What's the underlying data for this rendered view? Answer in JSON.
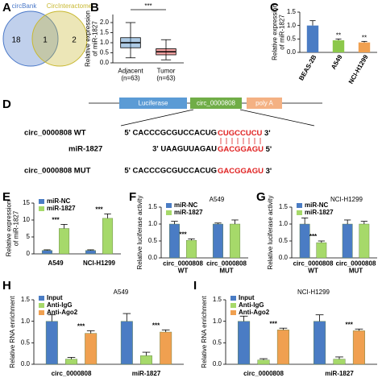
{
  "chart_data": [
    {
      "type": "venn",
      "panel": "A",
      "sets": [
        {
          "name": "circBank",
          "color": "#4a78c8"
        },
        {
          "name": "CircInteractome",
          "color": "#c8b830"
        }
      ],
      "counts": [
        18,
        1,
        2
      ]
    },
    {
      "type": "box",
      "panel": "B",
      "ylabel": "Relative expression\nof miR-1827",
      "categories": [
        "Adjacent\n(n=63)",
        "Tumor\n(n=63)"
      ],
      "colors": [
        "#4a8ac4",
        "#e03030"
      ],
      "boxes": [
        {
          "min": 0.25,
          "q1": 0.75,
          "median": 1.0,
          "q3": 1.25,
          "max": 2.0
        },
        {
          "min": 0.15,
          "q1": 0.4,
          "median": 0.55,
          "q3": 0.7,
          "max": 1.15
        }
      ],
      "ylim": [
        0,
        2.4
      ],
      "yticks": [
        {
          "value": 0,
          "label": "0.0"
        },
        {
          "value": 0.5,
          "label": "0.5"
        },
        {
          "value": 1,
          "label": "1.0"
        },
        {
          "value": 1.5,
          "label": "1.5"
        },
        {
          "value": 2,
          "label": "2.0"
        }
      ],
      "significance": "***"
    },
    {
      "type": "bar",
      "panel": "C",
      "ylabel": "Relative expression\nof miR-1827",
      "categories": [
        "BEAS-2B",
        "A549",
        "NCI-H1299"
      ],
      "values": [
        1.0,
        0.45,
        0.37
      ],
      "errors": [
        0.18,
        0.05,
        0.04
      ],
      "colors": [
        "#4a7cc4",
        "#8cc84b",
        "#f0a050"
      ],
      "significance": [
        null,
        "**",
        "**"
      ],
      "ylim": [
        0,
        1.5
      ],
      "yticks": [
        {
          "value": 0,
          "label": "0.0"
        },
        {
          "value": 0.5,
          "label": "0.5"
        },
        {
          "value": 1,
          "label": "1.0"
        },
        {
          "value": 1.5,
          "label": "1.5"
        }
      ]
    },
    {
      "type": "grouped-bar",
      "panel": "E",
      "ylabel": "Relative expression\nof miR-1827",
      "categories": [
        "A549",
        "NCI-H1299"
      ],
      "series": [
        {
          "name": "miR-NC",
          "color": "#4a7cc4",
          "values": [
            1.0,
            1.0
          ],
          "errors": [
            0.2,
            0.2
          ]
        },
        {
          "name": "miR-1827",
          "color": "#a6d96a",
          "values": [
            7.5,
            10.5
          ],
          "errors": [
            1.2,
            1.3
          ],
          "significance": [
            "***",
            "***"
          ]
        }
      ],
      "ylim": [
        0,
        15
      ],
      "yticks": [
        0,
        5,
        10,
        15
      ]
    },
    {
      "type": "grouped-bar",
      "panel": "F",
      "title": "A549",
      "ylabel": "Relative luciferase activity",
      "categories": [
        "circ_0000808\nWT",
        "circ_0000808\nMUT"
      ],
      "series": [
        {
          "name": "miR-NC",
          "color": "#4a7cc4",
          "values": [
            1.0,
            1.0
          ],
          "errors": [
            0.08,
            0.03
          ]
        },
        {
          "name": "miR-1827",
          "color": "#a6d96a",
          "values": [
            0.52,
            1.0
          ],
          "errors": [
            0.04,
            0.12
          ],
          "significance": [
            "***",
            null
          ]
        }
      ],
      "ylim": [
        0,
        1.5
      ],
      "yticks": [
        {
          "value": 0,
          "label": "0.0"
        },
        {
          "value": 0.5,
          "label": "0.5"
        },
        {
          "value": 1,
          "label": "1.0"
        },
        {
          "value": 1.5,
          "label": "1.5"
        }
      ]
    },
    {
      "type": "grouped-bar",
      "panel": "G",
      "title": "NCI-H1299",
      "ylabel": "Relative luciferase activity",
      "categories": [
        "circ_0000808\nWT",
        "circ_0000808\nMUT"
      ],
      "series": [
        {
          "name": "miR-NC",
          "color": "#4a7cc4",
          "values": [
            1.0,
            1.0
          ],
          "errors": [
            0.18,
            0.12
          ]
        },
        {
          "name": "miR-1827",
          "color": "#a6d96a",
          "values": [
            0.45,
            1.0
          ],
          "errors": [
            0.05,
            0.08
          ],
          "significance": [
            "***",
            null
          ]
        }
      ],
      "ylim": [
        0,
        1.5
      ],
      "yticks": [
        {
          "value": 0,
          "label": "0.0"
        },
        {
          "value": 0.5,
          "label": "0.5"
        },
        {
          "value": 1,
          "label": "1.0"
        },
        {
          "value": 1.5,
          "label": "1.5"
        }
      ]
    },
    {
      "type": "grouped-bar",
      "panel": "H",
      "title": "A549",
      "ylabel": "Relative RNA enrichment",
      "categories": [
        "circ_0000808",
        "miR-1827"
      ],
      "series": [
        {
          "name": "Input",
          "color": "#4a7cc4",
          "values": [
            1.0,
            1.0
          ],
          "errors": [
            0.15,
            0.18
          ]
        },
        {
          "name": "Anti-IgG",
          "color": "#a6d96a",
          "values": [
            0.12,
            0.2
          ],
          "errors": [
            0.04,
            0.08
          ]
        },
        {
          "name": "Anti-Ago2",
          "color": "#f0a050",
          "values": [
            0.72,
            0.75
          ],
          "errors": [
            0.06,
            0.05
          ],
          "significance": [
            "***",
            "***"
          ]
        }
      ],
      "ylim": [
        0,
        1.5
      ],
      "yticks": [
        {
          "value": 0,
          "label": "0.0"
        },
        {
          "value": 0.5,
          "label": "0.5"
        },
        {
          "value": 1,
          "label": "1.0"
        },
        {
          "value": 1.5,
          "label": "1.5"
        }
      ]
    },
    {
      "type": "grouped-bar",
      "panel": "I",
      "title": "NCI-H1299",
      "ylabel": "Relative RNA enrichment",
      "categories": [
        "circ_0000808",
        "miR-1827"
      ],
      "series": [
        {
          "name": "Input",
          "color": "#4a7cc4",
          "values": [
            1.0,
            1.0
          ],
          "errors": [
            0.12,
            0.15
          ]
        },
        {
          "name": "Anti-IgG",
          "color": "#a6d96a",
          "values": [
            0.1,
            0.12
          ],
          "errors": [
            0.03,
            0.05
          ]
        },
        {
          "name": "Anti-Ago2",
          "color": "#f0a050",
          "values": [
            0.8,
            0.78
          ],
          "errors": [
            0.04,
            0.04
          ],
          "significance": [
            "***",
            "***"
          ]
        }
      ],
      "ylim": [
        0,
        1.5
      ],
      "yticks": [
        {
          "value": 0,
          "label": "0.0"
        },
        {
          "value": 0.5,
          "label": "0.5"
        },
        {
          "value": 1,
          "label": "1.0"
        },
        {
          "value": 1.5,
          "label": "1.5"
        }
      ]
    }
  ],
  "construct": {
    "panel": "D",
    "boxes": [
      "Luciferase",
      "circ_0000808",
      "poly A"
    ],
    "wt": {
      "label": "circ_0000808 WT",
      "prefix": "5' CACCCGCGUCCACUG",
      "site": "CUGCCUCU",
      "suffix": " 3'"
    },
    "mirna": {
      "label": "miR-1827",
      "prefix": "3' UAAGUUAGAU",
      "site": "GACGGAGU",
      "suffix": " 5'"
    },
    "mut": {
      "label": "circ_0000808 MUT",
      "prefix": "5' CACCCGCGUCCACUG",
      "site": "GACGGAGU",
      "suffix": " 3'"
    }
  }
}
